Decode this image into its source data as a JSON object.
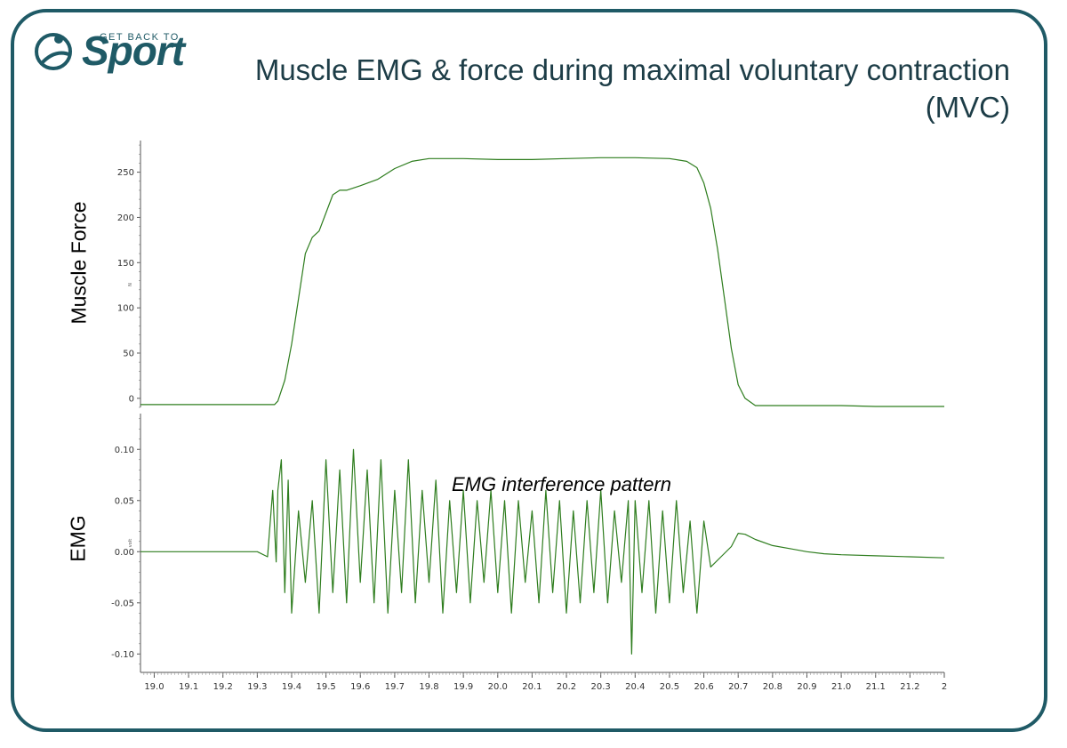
{
  "logo": {
    "top_text": "GET BACK TO",
    "word": "Sport"
  },
  "title": "Muscle EMG & force during maximal voluntary contraction (MVC)",
  "annotation": "EMG interference pattern",
  "colors": {
    "frame": "#1f5a66",
    "trace": "#2e7d1e",
    "title": "#1d3d47"
  },
  "chart_data": [
    {
      "type": "line",
      "ylabel": "Muscle Force",
      "yunit": "N",
      "ylim": [
        -10,
        285
      ],
      "yticks": [
        0,
        50,
        100,
        150,
        200,
        250
      ],
      "xlim": [
        18.96,
        21.3
      ],
      "series": [
        {
          "x": [
            18.96,
            19.2,
            19.35,
            19.36,
            19.38,
            19.4,
            19.42,
            19.44,
            19.46,
            19.48,
            19.5,
            19.52,
            19.54,
            19.56,
            19.6,
            19.65,
            19.7,
            19.75,
            19.8,
            19.9,
            20.0,
            20.1,
            20.2,
            20.3,
            20.4,
            20.5,
            20.55,
            20.58,
            20.6,
            20.62,
            20.64,
            20.66,
            20.68,
            20.7,
            20.72,
            20.75,
            20.8,
            20.9,
            21.0,
            21.1,
            21.2,
            21.3
          ],
          "y": [
            -7,
            -7,
            -7,
            -3,
            20,
            60,
            110,
            160,
            178,
            185,
            205,
            225,
            230,
            230,
            235,
            242,
            254,
            262,
            265,
            265,
            264,
            264,
            265,
            266,
            266,
            265,
            262,
            255,
            238,
            210,
            165,
            110,
            55,
            15,
            0,
            -8,
            -8,
            -8,
            -8,
            -9,
            -9,
            -9
          ]
        }
      ]
    },
    {
      "type": "line",
      "ylabel": "EMG",
      "yunit": "volt",
      "ylim": [
        -0.118,
        0.135
      ],
      "yticks": [
        -0.1,
        -0.05,
        0.0,
        0.05,
        0.1
      ],
      "xlim": [
        18.96,
        21.3
      ],
      "xticks": [
        "19.0",
        "19.1",
        "19.2",
        "19.3",
        "19.4",
        "19.5",
        "19.6",
        "19.7",
        "19.8",
        "19.9",
        "20.0",
        "20.1",
        "20.2",
        "20.3",
        "20.4",
        "20.5",
        "20.6",
        "20.7",
        "20.8",
        "20.9",
        "21.0",
        "21.1",
        "21.2",
        "2"
      ],
      "series": [
        {
          "x": [
            18.96,
            19.3,
            19.33,
            19.345,
            19.355,
            19.36,
            19.37,
            19.38,
            19.39,
            19.4,
            19.42,
            19.44,
            19.46,
            19.48,
            19.5,
            19.52,
            19.54,
            19.56,
            19.58,
            19.6,
            19.62,
            19.64,
            19.66,
            19.68,
            19.7,
            19.72,
            19.74,
            19.76,
            19.78,
            19.8,
            19.82,
            19.84,
            19.86,
            19.88,
            19.9,
            19.92,
            19.94,
            19.96,
            19.98,
            20.0,
            20.02,
            20.04,
            20.06,
            20.08,
            20.1,
            20.12,
            20.14,
            20.16,
            20.18,
            20.2,
            20.22,
            20.24,
            20.26,
            20.28,
            20.3,
            20.32,
            20.34,
            20.36,
            20.38,
            20.39,
            20.4,
            20.42,
            20.44,
            20.46,
            20.48,
            20.5,
            20.52,
            20.54,
            20.56,
            20.58,
            20.6,
            20.62,
            20.65,
            20.68,
            20.7,
            20.72,
            20.75,
            20.8,
            20.85,
            20.9,
            20.95,
            21.0,
            21.1,
            21.2,
            21.3
          ],
          "y": [
            0.0,
            0.0,
            -0.005,
            0.06,
            -0.01,
            0.06,
            0.09,
            -0.04,
            0.07,
            -0.06,
            0.04,
            -0.03,
            0.05,
            -0.06,
            0.09,
            -0.04,
            0.08,
            -0.05,
            0.1,
            -0.03,
            0.08,
            -0.05,
            0.09,
            -0.06,
            0.06,
            -0.04,
            0.09,
            -0.05,
            0.06,
            -0.03,
            0.07,
            -0.06,
            0.05,
            -0.04,
            0.06,
            -0.05,
            0.05,
            -0.03,
            0.06,
            -0.04,
            0.05,
            -0.06,
            0.05,
            -0.03,
            0.04,
            -0.05,
            0.06,
            -0.04,
            0.05,
            -0.06,
            0.04,
            -0.05,
            0.05,
            -0.04,
            0.06,
            -0.05,
            0.04,
            -0.03,
            0.05,
            -0.1,
            0.05,
            -0.04,
            0.05,
            -0.06,
            0.04,
            -0.05,
            0.05,
            -0.04,
            0.03,
            -0.06,
            0.03,
            -0.015,
            -0.005,
            0.005,
            0.018,
            0.017,
            0.012,
            0.006,
            0.003,
            0.0,
            -0.002,
            -0.003,
            -0.004,
            -0.005,
            -0.006
          ]
        }
      ]
    }
  ]
}
